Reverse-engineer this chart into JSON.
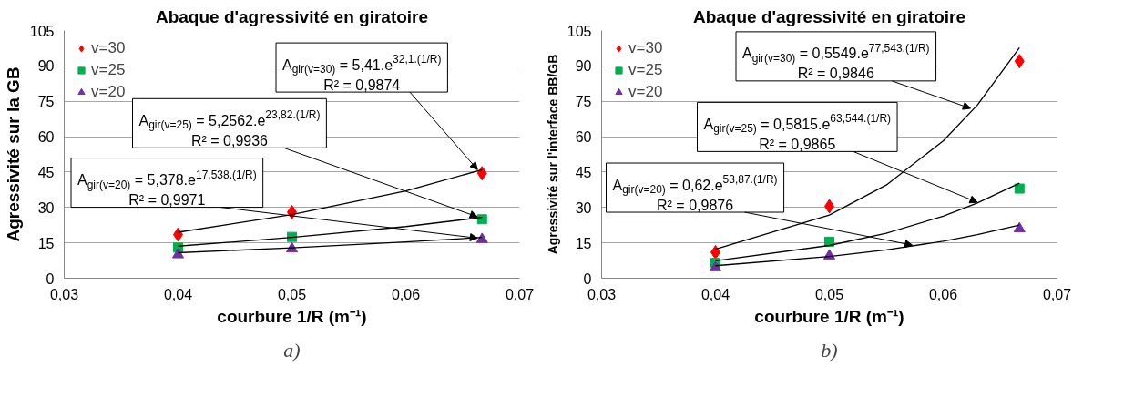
{
  "chart_data": [
    {
      "type": "scatter",
      "title": "Abaque d'agressivité en giratoire",
      "xlabel": "courbure 1/R (m⁻¹)",
      "ylabel": "Agressivité sur la GB",
      "xlim": [
        0.03,
        0.07
      ],
      "xticks": [
        {
          "value": 0.03,
          "label": "0,03"
        },
        {
          "value": 0.04,
          "label": "0,04"
        },
        {
          "value": 0.05,
          "label": "0,05"
        },
        {
          "value": 0.06,
          "label": "0,06"
        },
        {
          "value": 0.07,
          "label": "0,07"
        }
      ],
      "ylim": [
        0,
        105
      ],
      "yticks": [
        0,
        15,
        30,
        45,
        60,
        75,
        90,
        105
      ],
      "grid": "y",
      "legend": "top left",
      "x": [
        0.04,
        0.05,
        0.0667
      ],
      "series": [
        {
          "name": "v=30",
          "color": "#ff0000",
          "marker": "diamond",
          "values": [
            18.5,
            28,
            44.5
          ]
        },
        {
          "name": "v=25",
          "color": "#00b050",
          "marker": "square",
          "values": [
            13,
            17.5,
            25
          ]
        },
        {
          "name": "v=20",
          "color": "#7030a0",
          "marker": "triangle",
          "values": [
            10,
            12.5,
            16.5
          ]
        },
        {
          "type": "line",
          "color": "#000000",
          "x": [
            0.04,
            0.05,
            0.06,
            0.0667
          ],
          "values": [
            19.5,
            27,
            37,
            46
          ]
        },
        {
          "type": "line",
          "color": "#000000",
          "x": [
            0.04,
            0.05,
            0.06,
            0.0667
          ],
          "values": [
            13.6,
            17.3,
            21.9,
            25.8
          ]
        },
        {
          "type": "line",
          "color": "#000000",
          "x": [
            0.04,
            0.05,
            0.06,
            0.0667
          ],
          "values": [
            10.8,
            12.9,
            15.4,
            17.3
          ]
        }
      ],
      "annotations": [
        {
          "text": "A$_{gir(v=30)}$ = 5,41.e$^{32,1.(1/R)}$\nR² = 0,9874",
          "x": 0.0663,
          "y": 46
        },
        {
          "text": "A$_{gir(v=25)}$ = 5,2562.e$^{23,82.(1/R)}$\nR² = 0,9936",
          "x": 0.0663,
          "y": 26
        },
        {
          "text": "A$_{gir(v=20)}$ = 5,378.e$^{17,538.(1/R)}$\nR² = 0,9971",
          "x": 0.0663,
          "y": 17
        },
        "a)"
      ]
    },
    {
      "type": "scatter",
      "title": "Abaque d'agressivité en giratoire",
      "xlabel": "courbure 1/R (m⁻¹)",
      "ylabel": "Agressivité sur l'interface BB/GB",
      "xlim": [
        0.03,
        0.07
      ],
      "xticks": [
        {
          "value": 0.03,
          "label": "0,03"
        },
        {
          "value": 0.04,
          "label": "0,04"
        },
        {
          "value": 0.05,
          "label": "0,05"
        },
        {
          "value": 0.06,
          "label": "0,06"
        },
        {
          "value": 0.07,
          "label": "0,07"
        }
      ],
      "ylim": [
        0,
        105
      ],
      "yticks": [
        0,
        15,
        30,
        45,
        60,
        75,
        90,
        105
      ],
      "grid": "y",
      "legend": "top left",
      "x": [
        0.04,
        0.05,
        0.0667
      ],
      "series": [
        {
          "name": "v=30",
          "color": "#ff0000",
          "marker": "diamond",
          "values": [
            11,
            30.5,
            92
          ]
        },
        {
          "name": "v=25",
          "color": "#00b050",
          "marker": "square",
          "values": [
            6.5,
            15.5,
            38
          ]
        },
        {
          "name": "v=20",
          "color": "#7030a0",
          "marker": "triangle",
          "values": [
            4.5,
            9.5,
            21
          ]
        },
        {
          "type": "line",
          "color": "#000000",
          "x": [
            0.04,
            0.05,
            0.055,
            0.06,
            0.063,
            0.0667
          ],
          "values": [
            12.3,
            26.8,
            39.5,
            58.2,
            73.4,
            97.7
          ]
        },
        {
          "type": "line",
          "color": "#000000",
          "x": [
            0.04,
            0.05,
            0.055,
            0.06,
            0.063,
            0.0667
          ],
          "values": [
            7.4,
            13.9,
            19.1,
            26.3,
            31.9,
            40.3
          ]
        },
        {
          "type": "line",
          "color": "#000000",
          "x": [
            0.04,
            0.05,
            0.055,
            0.06,
            0.063,
            0.0667
          ],
          "values": [
            5.3,
            9.2,
            12.0,
            15.7,
            18.5,
            22.5
          ]
        }
      ],
      "annotations": [
        {
          "text": "A$_{gir(v=30)}$ = 0,5549.e$^{77,543.(1/R)}$\nR² = 0,9846",
          "x": 0.0624,
          "y": 72
        },
        {
          "text": "A$_{gir(v=25)}$ = 0,5815.e$^{63,544.(1/R)}$\nR² = 0,9865",
          "x": 0.063,
          "y": 32.2
        },
        {
          "text": "A$_{gir(v=20)}$ = 0,62.e$^{53,87.(1/R)}$\nR² = 0,9876",
          "x": 0.0573,
          "y": 14
        },
        "b)"
      ]
    }
  ]
}
